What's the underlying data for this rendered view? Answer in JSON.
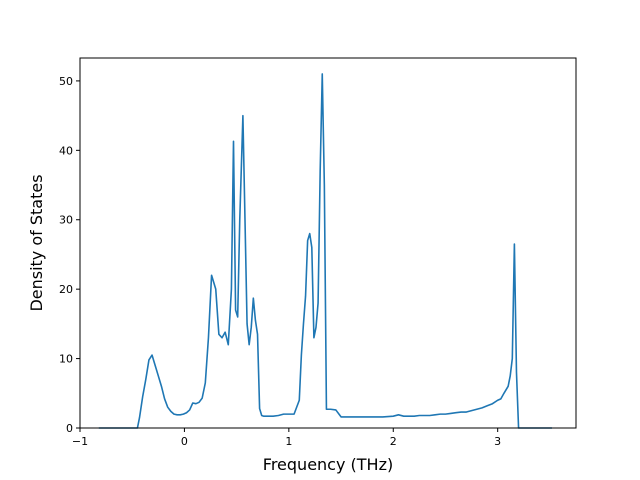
{
  "chart_data": {
    "type": "line",
    "xlabel": "Frequency (THz)",
    "ylabel": "Density of States",
    "xlim": [
      -1.0,
      3.75
    ],
    "ylim": [
      0,
      53.3
    ],
    "xticks": [
      -1,
      0,
      1,
      2,
      3
    ],
    "yticks": [
      0,
      10,
      20,
      30,
      40,
      50
    ],
    "grid": false,
    "line_color": "#1f77b4",
    "series": [
      {
        "x": [
          -0.82,
          -0.45,
          -0.43,
          -0.4,
          -0.37,
          -0.34,
          -0.31,
          -0.28,
          -0.25,
          -0.22,
          -0.19,
          -0.16,
          -0.13,
          -0.1,
          -0.07,
          -0.04,
          -0.01,
          0.02,
          0.05,
          0.08,
          0.11,
          0.14,
          0.17,
          0.2,
          0.23,
          0.26,
          0.3,
          0.33,
          0.36,
          0.39,
          0.42,
          0.45,
          0.47,
          0.49,
          0.51,
          0.53,
          0.56,
          0.58,
          0.6,
          0.62,
          0.64,
          0.66,
          0.68,
          0.7,
          0.72,
          0.74,
          0.76,
          0.78,
          0.8,
          0.82,
          0.85,
          0.9,
          0.95,
          1.0,
          1.05,
          1.1,
          1.12,
          1.14,
          1.16,
          1.18,
          1.2,
          1.22,
          1.24,
          1.26,
          1.28,
          1.3,
          1.32,
          1.34,
          1.36,
          1.4,
          1.45,
          1.5,
          1.6,
          1.7,
          1.8,
          1.9,
          2.0,
          2.05,
          2.1,
          2.15,
          2.2,
          2.25,
          2.3,
          2.35,
          2.4,
          2.45,
          2.5,
          2.55,
          2.6,
          2.65,
          2.7,
          2.75,
          2.8,
          2.85,
          2.9,
          2.95,
          3.0,
          3.03,
          3.06,
          3.08,
          3.1,
          3.12,
          3.14,
          3.16,
          3.18,
          3.2,
          3.3,
          3.52
        ],
        "y": [
          0.0,
          0.0,
          1.5,
          4.5,
          7.0,
          9.8,
          10.5,
          9.0,
          7.5,
          6.0,
          4.2,
          3.0,
          2.4,
          2.0,
          1.9,
          1.9,
          2.0,
          2.2,
          2.6,
          3.6,
          3.5,
          3.7,
          4.3,
          6.5,
          13.0,
          22.0,
          20.0,
          13.5,
          13.0,
          13.8,
          12.0,
          20.0,
          41.3,
          17.0,
          16.0,
          30.0,
          45.0,
          30.0,
          15.0,
          12.0,
          14.5,
          18.7,
          15.5,
          13.5,
          2.8,
          1.8,
          1.7,
          1.7,
          1.7,
          1.7,
          1.7,
          1.8,
          2.0,
          2.0,
          2.0,
          4.0,
          10.5,
          15.0,
          19.0,
          27.0,
          28.0,
          26.0,
          13.0,
          14.5,
          18.0,
          37.0,
          51.0,
          35.0,
          2.7,
          2.7,
          2.6,
          1.6,
          1.6,
          1.6,
          1.6,
          1.6,
          1.7,
          1.9,
          1.7,
          1.7,
          1.7,
          1.8,
          1.8,
          1.8,
          1.9,
          2.0,
          2.0,
          2.1,
          2.2,
          2.3,
          2.3,
          2.5,
          2.7,
          2.9,
          3.2,
          3.5,
          4.0,
          4.2,
          5.0,
          5.5,
          6.0,
          7.5,
          10.0,
          26.5,
          8.0,
          0.0,
          0.0,
          0.0
        ]
      }
    ]
  }
}
